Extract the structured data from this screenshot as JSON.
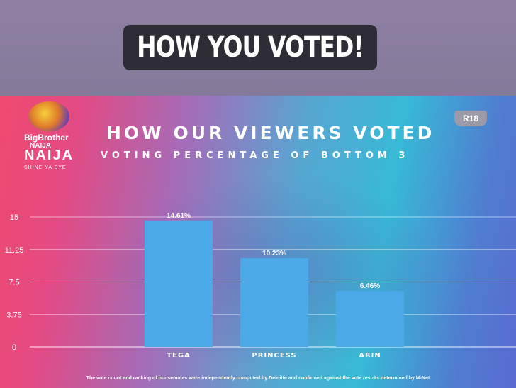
{
  "caption": "HOW YOU VOTED!",
  "logo": {
    "line1": "BigBrother",
    "line2": "NAIJA",
    "line3": "NAIJA",
    "line4": "SHINE YA EYE"
  },
  "rating_badge": "R18",
  "footnote": "The vote count and ranking of housemates were independently computed by Deloitte and confirmed against the vote results determined by M-Net",
  "colors": {
    "bar": "#4aa9e6",
    "gridline": "#ffffff",
    "text": "#ffffff"
  },
  "chart_data": {
    "type": "bar",
    "title": "HOW OUR VIEWERS VOTED",
    "subtitle": "VOTING PERCENTAGE OF BOTTOM 3",
    "categories": [
      "TEGA",
      "PRINCESS",
      "ARIN"
    ],
    "values": [
      14.61,
      10.23,
      6.46
    ],
    "data_labels": [
      "14.61%",
      "10.23%",
      "6.46%"
    ],
    "yticks": [
      0,
      3.75,
      7.5,
      11.25,
      15
    ],
    "ytick_labels": [
      "0",
      "3.75",
      "7.5",
      "11.25",
      "15"
    ],
    "ylim": [
      0,
      15
    ],
    "xlabel": "",
    "ylabel": "",
    "grid": true
  }
}
